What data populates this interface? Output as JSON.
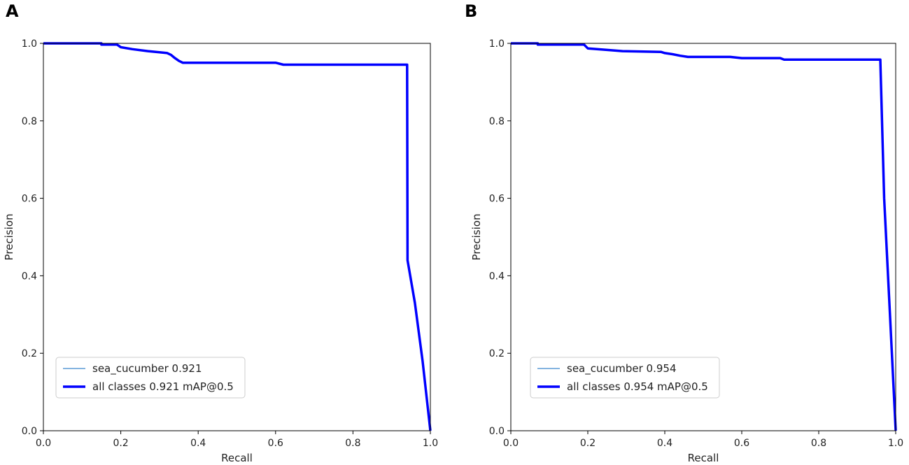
{
  "chart_data": [
    {
      "type": "line",
      "panel_label": "A",
      "xlabel": "Recall",
      "ylabel": "Precision",
      "xlim": [
        0,
        1
      ],
      "ylim": [
        0,
        1
      ],
      "xticks": [
        "0.0",
        "0.2",
        "0.4",
        "0.6",
        "0.8",
        "1.0"
      ],
      "yticks": [
        "0.0",
        "0.2",
        "0.4",
        "0.6",
        "0.8",
        "1.0"
      ],
      "grid": false,
      "legend_position": "lower-left",
      "series": [
        {
          "name": "sea_cucumber 0.921",
          "color": "#5b9bd5",
          "points": [
            [
              0,
              1.0
            ],
            [
              0.15,
              1.0
            ],
            [
              0.15,
              0.997
            ],
            [
              0.19,
              0.997
            ],
            [
              0.2,
              0.99
            ],
            [
              0.23,
              0.985
            ],
            [
              0.27,
              0.98
            ],
            [
              0.3,
              0.977
            ],
            [
              0.32,
              0.975
            ],
            [
              0.33,
              0.97
            ],
            [
              0.34,
              0.962
            ],
            [
              0.35,
              0.955
            ],
            [
              0.36,
              0.95
            ],
            [
              0.6,
              0.95
            ],
            [
              0.62,
              0.945
            ],
            [
              0.94,
              0.945
            ],
            [
              0.941,
              0.44
            ],
            [
              0.96,
              0.33
            ],
            [
              0.98,
              0.18
            ],
            [
              1.0,
              0.0
            ]
          ]
        },
        {
          "name": "all classes 0.921 mAP@0.5",
          "color": "#0000ff",
          "points": [
            [
              0,
              1.0
            ],
            [
              0.15,
              1.0
            ],
            [
              0.15,
              0.997
            ],
            [
              0.19,
              0.997
            ],
            [
              0.2,
              0.99
            ],
            [
              0.23,
              0.985
            ],
            [
              0.27,
              0.98
            ],
            [
              0.3,
              0.977
            ],
            [
              0.32,
              0.975
            ],
            [
              0.33,
              0.97
            ],
            [
              0.34,
              0.962
            ],
            [
              0.35,
              0.955
            ],
            [
              0.36,
              0.95
            ],
            [
              0.6,
              0.95
            ],
            [
              0.62,
              0.945
            ],
            [
              0.94,
              0.945
            ],
            [
              0.941,
              0.44
            ],
            [
              0.96,
              0.33
            ],
            [
              0.98,
              0.18
            ],
            [
              1.0,
              0.0
            ]
          ]
        }
      ]
    },
    {
      "type": "line",
      "panel_label": "B",
      "xlabel": "Recall",
      "ylabel": "Precision",
      "xlim": [
        0,
        1
      ],
      "ylim": [
        0,
        1
      ],
      "xticks": [
        "0.0",
        "0.2",
        "0.4",
        "0.6",
        "0.8",
        "1.0"
      ],
      "yticks": [
        "0.0",
        "0.2",
        "0.4",
        "0.6",
        "0.8",
        "1.0"
      ],
      "grid": false,
      "legend_position": "lower-left",
      "series": [
        {
          "name": "sea_cucumber 0.954",
          "color": "#5b9bd5",
          "points": [
            [
              0,
              1.0
            ],
            [
              0.07,
              1.0
            ],
            [
              0.07,
              0.997
            ],
            [
              0.19,
              0.997
            ],
            [
              0.2,
              0.987
            ],
            [
              0.25,
              0.983
            ],
            [
              0.29,
              0.98
            ],
            [
              0.39,
              0.978
            ],
            [
              0.4,
              0.975
            ],
            [
              0.42,
              0.972
            ],
            [
              0.44,
              0.968
            ],
            [
              0.46,
              0.965
            ],
            [
              0.57,
              0.965
            ],
            [
              0.6,
              0.962
            ],
            [
              0.7,
              0.962
            ],
            [
              0.71,
              0.958
            ],
            [
              0.96,
              0.958
            ],
            [
              0.97,
              0.6
            ],
            [
              0.985,
              0.3
            ],
            [
              1.0,
              0.0
            ]
          ]
        },
        {
          "name": "all classes 0.954 mAP@0.5",
          "color": "#0000ff",
          "points": [
            [
              0,
              1.0
            ],
            [
              0.07,
              1.0
            ],
            [
              0.07,
              0.997
            ],
            [
              0.19,
              0.997
            ],
            [
              0.2,
              0.987
            ],
            [
              0.25,
              0.983
            ],
            [
              0.29,
              0.98
            ],
            [
              0.39,
              0.978
            ],
            [
              0.4,
              0.975
            ],
            [
              0.42,
              0.972
            ],
            [
              0.44,
              0.968
            ],
            [
              0.46,
              0.965
            ],
            [
              0.57,
              0.965
            ],
            [
              0.6,
              0.962
            ],
            [
              0.7,
              0.962
            ],
            [
              0.71,
              0.958
            ],
            [
              0.96,
              0.958
            ],
            [
              0.97,
              0.6
            ],
            [
              0.985,
              0.3
            ],
            [
              1.0,
              0.0
            ]
          ]
        }
      ]
    }
  ]
}
